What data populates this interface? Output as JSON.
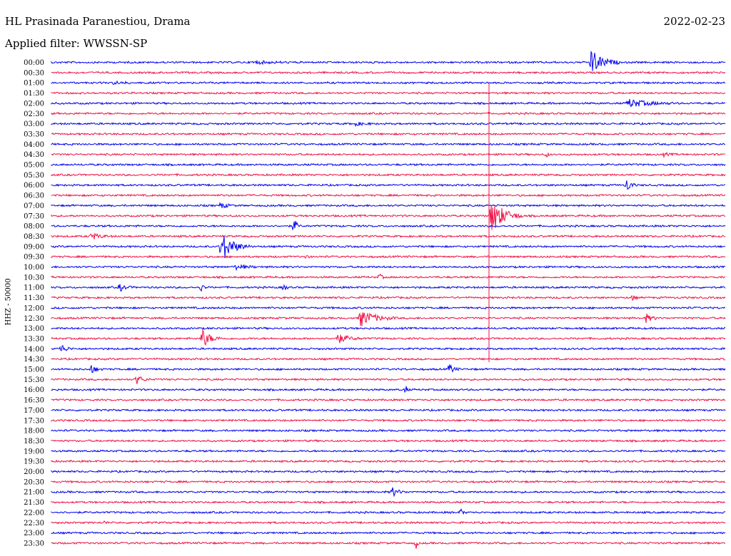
{
  "header": {
    "station": "HL Prasinada Paranestiou, Drama",
    "date": "2022-02-23",
    "filter": "Applied filter: WWSSN-SP"
  },
  "chart_data": {
    "type": "line",
    "title": "HL Prasinada Paranestiou, Drama",
    "ylabel": "HHZ - 50000",
    "colors": [
      "#0000ee",
      "#ee1146"
    ],
    "rows": [
      {
        "label": "00:00"
      },
      {
        "label": "00:30"
      },
      {
        "label": "01:00"
      },
      {
        "label": "01:30"
      },
      {
        "label": "02:00"
      },
      {
        "label": "02:30"
      },
      {
        "label": "03:00"
      },
      {
        "label": "03:30"
      },
      {
        "label": "04:00"
      },
      {
        "label": "04:30"
      },
      {
        "label": "05:00"
      },
      {
        "label": "05:30"
      },
      {
        "label": "06:00"
      },
      {
        "label": "06:30"
      },
      {
        "label": "07:00"
      },
      {
        "label": "07:30"
      },
      {
        "label": "08:00"
      },
      {
        "label": "08:30"
      },
      {
        "label": "09:00"
      },
      {
        "label": "09:30"
      },
      {
        "label": "10:00"
      },
      {
        "label": "10:30"
      },
      {
        "label": "11:00"
      },
      {
        "label": "11:30"
      },
      {
        "label": "12:00"
      },
      {
        "label": "12:30"
      },
      {
        "label": "13:00"
      },
      {
        "label": "13:30"
      },
      {
        "label": "14:00"
      },
      {
        "label": "14:30"
      },
      {
        "label": "15:00"
      },
      {
        "label": "15:30"
      },
      {
        "label": "16:00"
      },
      {
        "label": "16:30"
      },
      {
        "label": "17:00"
      },
      {
        "label": "17:30"
      },
      {
        "label": "18:00"
      },
      {
        "label": "18:30"
      },
      {
        "label": "19:00"
      },
      {
        "label": "19:30"
      },
      {
        "label": "20:00"
      },
      {
        "label": "20:30"
      },
      {
        "label": "21:00"
      },
      {
        "label": "21:30"
      },
      {
        "label": "22:00"
      },
      {
        "label": "22:30"
      },
      {
        "label": "23:00"
      },
      {
        "label": "23:30"
      }
    ]
  }
}
